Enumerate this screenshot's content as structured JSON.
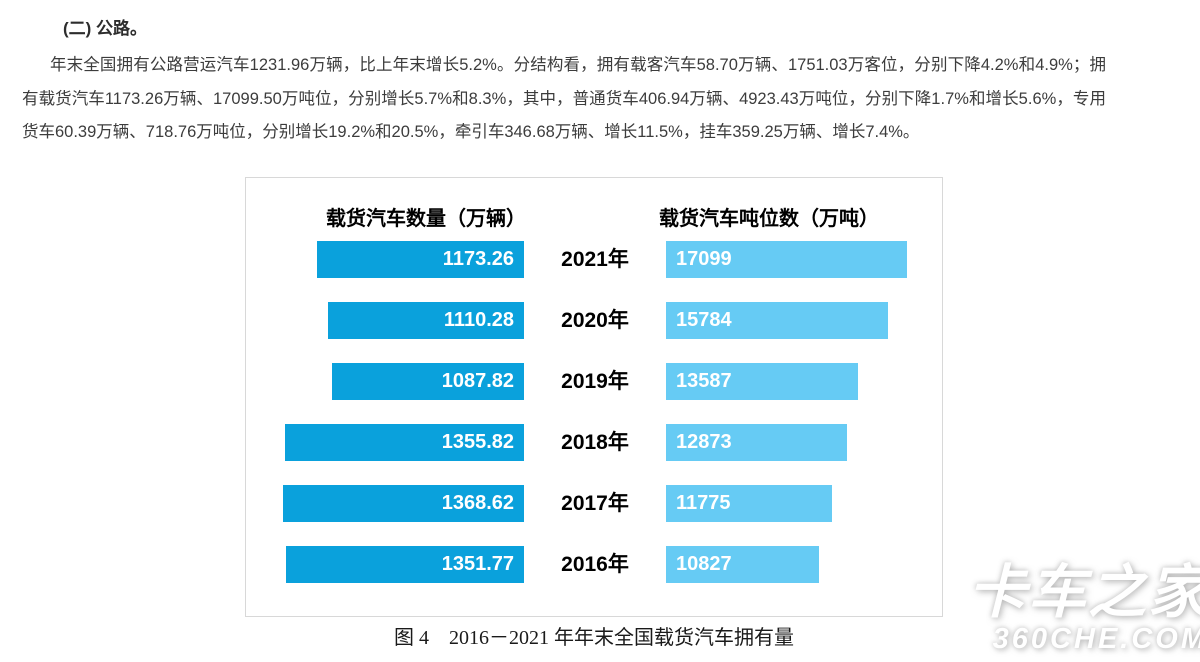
{
  "document": {
    "heading": "(二) 公路。",
    "paragraph": "年末全国拥有公路营运汽车1231.96万辆，比上年末增长5.2%。分结构看，拥有载客汽车58.70万辆、1751.03万客位，分别下降4.2%和4.9%；拥有载货汽车1173.26万辆、17099.50万吨位，分别增长5.7%和8.3%，其中，普通货车406.94万辆、4923.43万吨位，分别下降1.7%和增长5.6%，专用货车60.39万辆、718.76万吨位，分别增长19.2%和20.5%，牵引车346.68万辆、增长11.5%，挂车359.25万辆、增长7.4%。",
    "caption": "图 4　2016－2021 年年末全国载货汽车拥有量"
  },
  "chart_data": {
    "type": "bar",
    "orientation": "horizontal",
    "title": "图 4 2016－2021 年年末全国载货汽车拥有量",
    "categories": [
      "2021年",
      "2020年",
      "2019年",
      "2018年",
      "2017年",
      "2016年"
    ],
    "series": [
      {
        "name": "载货汽车数量（万辆）",
        "values": [
          1173.26,
          1110.28,
          1087.82,
          1355.82,
          1368.62,
          1351.77
        ],
        "labels": [
          "1173.26",
          "1110.28",
          "1087.82",
          "1355.82",
          "1368.62",
          "1351.77"
        ],
        "color": "#0aa1dc",
        "align": "right"
      },
      {
        "name": "载货汽车吨位数（万吨）",
        "values": [
          17099,
          15784,
          13587,
          12873,
          11775,
          10827
        ],
        "labels": [
          "17099",
          "15784",
          "13587",
          "12873",
          "11775",
          "10827"
        ],
        "color": "#66cbf4",
        "align": "left"
      }
    ],
    "value_label_color": "#ffffff",
    "xlim_left_series": [
      0,
      1368.62
    ],
    "xlim_right_series": [
      0,
      17099
    ],
    "grid": false,
    "legend": "none",
    "axes": "none"
  },
  "watermark": {
    "line1": "卡车之家",
    "line2": "360CHE.COM"
  }
}
